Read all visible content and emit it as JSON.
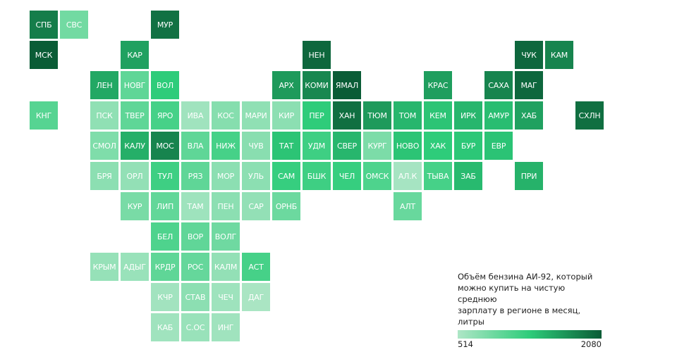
{
  "legend": {
    "title": "Объём бензина АИ-92, который\nможно купить на чистую среднюю\nзарплату в регионе в месяц, литры",
    "min_label": "514",
    "max_label": "2080",
    "min": 514,
    "max": 2080,
    "colors": [
      "#aee6c6",
      "#2ecc7a",
      "#0a5c36"
    ]
  },
  "tiles": [
    {
      "label": "СПБ",
      "row": 0,
      "col": 0,
      "value": 1850
    },
    {
      "label": "СВС",
      "row": 0,
      "col": 1,
      "value": 880
    },
    {
      "label": "МУР",
      "row": 0,
      "col": 4,
      "value": 1930
    },
    {
      "label": "МСК",
      "row": 1,
      "col": 0,
      "value": 2080
    },
    {
      "label": "КАР",
      "row": 1,
      "col": 3,
      "value": 1600
    },
    {
      "label": "НЕН",
      "row": 1,
      "col": 9,
      "value": 2000
    },
    {
      "label": "ЧУК",
      "row": 1,
      "col": 16,
      "value": 2000
    },
    {
      "label": "КАМ",
      "row": 1,
      "col": 17,
      "value": 1800
    },
    {
      "label": "ЛЕН",
      "row": 2,
      "col": 2,
      "value": 1550
    },
    {
      "label": "НОВГ",
      "row": 2,
      "col": 3,
      "value": 1000
    },
    {
      "label": "ВОЛ",
      "row": 2,
      "col": 4,
      "value": 1300
    },
    {
      "label": "АРХ",
      "row": 2,
      "col": 8,
      "value": 1650
    },
    {
      "label": "КОМИ",
      "row": 2,
      "col": 9,
      "value": 1780
    },
    {
      "label": "ЯМАЛ",
      "row": 2,
      "col": 10,
      "value": 2080
    },
    {
      "label": "КРАС",
      "row": 2,
      "col": 13,
      "value": 1620
    },
    {
      "label": "САХА",
      "row": 2,
      "col": 15,
      "value": 1800
    },
    {
      "label": "МАГ",
      "row": 2,
      "col": 16,
      "value": 2000
    },
    {
      "label": "КНГ",
      "row": 3,
      "col": 0,
      "value": 1050
    },
    {
      "label": "ПСК",
      "row": 3,
      "col": 2,
      "value": 700
    },
    {
      "label": "ТВЕР",
      "row": 3,
      "col": 3,
      "value": 1000
    },
    {
      "label": "ЯРО",
      "row": 3,
      "col": 4,
      "value": 1150
    },
    {
      "label": "ИВА",
      "row": 3,
      "col": 5,
      "value": 600
    },
    {
      "label": "КОС",
      "row": 3,
      "col": 6,
      "value": 760
    },
    {
      "label": "МАРИ",
      "row": 3,
      "col": 7,
      "value": 700
    },
    {
      "label": "КИР",
      "row": 3,
      "col": 8,
      "value": 720
    },
    {
      "label": "ПЕР",
      "row": 3,
      "col": 9,
      "value": 1300
    },
    {
      "label": "ХАН",
      "row": 3,
      "col": 10,
      "value": 1950
    },
    {
      "label": "ТЮМ",
      "row": 3,
      "col": 11,
      "value": 1650
    },
    {
      "label": "ТОМ",
      "row": 3,
      "col": 12,
      "value": 1450
    },
    {
      "label": "КЕМ",
      "row": 3,
      "col": 13,
      "value": 1350
    },
    {
      "label": "ИРК",
      "row": 3,
      "col": 14,
      "value": 1450
    },
    {
      "label": "АМУР",
      "row": 3,
      "col": 15,
      "value": 1400
    },
    {
      "label": "ХАБ",
      "row": 3,
      "col": 16,
      "value": 1600
    },
    {
      "label": "СХЛН",
      "row": 3,
      "col": 18,
      "value": 1950
    },
    {
      "label": "СМОЛ",
      "row": 4,
      "col": 2,
      "value": 800
    },
    {
      "label": "КАЛУ",
      "row": 4,
      "col": 3,
      "value": 1500
    },
    {
      "label": "МОС",
      "row": 4,
      "col": 4,
      "value": 1800
    },
    {
      "label": "ВЛА",
      "row": 4,
      "col": 5,
      "value": 1000
    },
    {
      "label": "НИЖ",
      "row": 4,
      "col": 6,
      "value": 1150
    },
    {
      "label": "ЧУВ",
      "row": 4,
      "col": 7,
      "value": 740
    },
    {
      "label": "ТАТ",
      "row": 4,
      "col": 8,
      "value": 1350
    },
    {
      "label": "УДМ",
      "row": 4,
      "col": 9,
      "value": 1200
    },
    {
      "label": "СВЕР",
      "row": 4,
      "col": 10,
      "value": 1450
    },
    {
      "label": "КУРГ",
      "row": 4,
      "col": 11,
      "value": 820
    },
    {
      "label": "НОВО",
      "row": 4,
      "col": 12,
      "value": 1350
    },
    {
      "label": "ХАК",
      "row": 4,
      "col": 13,
      "value": 1300
    },
    {
      "label": "БУР",
      "row": 4,
      "col": 14,
      "value": 1330
    },
    {
      "label": "ЕВР",
      "row": 4,
      "col": 15,
      "value": 1360
    },
    {
      "label": "БРЯ",
      "row": 5,
      "col": 2,
      "value": 720
    },
    {
      "label": "ОРЛ",
      "row": 5,
      "col": 3,
      "value": 680
    },
    {
      "label": "ТУЛ",
      "row": 5,
      "col": 4,
      "value": 1200
    },
    {
      "label": "РЯЗ",
      "row": 5,
      "col": 5,
      "value": 1000
    },
    {
      "label": "МОР",
      "row": 5,
      "col": 6,
      "value": 720
    },
    {
      "label": "УЛЬ",
      "row": 5,
      "col": 7,
      "value": 720
    },
    {
      "label": "САМ",
      "row": 5,
      "col": 8,
      "value": 1250
    },
    {
      "label": "БШК",
      "row": 5,
      "col": 9,
      "value": 1200
    },
    {
      "label": "ЧЕЛ",
      "row": 5,
      "col": 10,
      "value": 1250
    },
    {
      "label": "ОМСК",
      "row": 5,
      "col": 11,
      "value": 1100
    },
    {
      "label": "АЛ.К",
      "row": 5,
      "col": 12,
      "value": 560
    },
    {
      "label": "ТЫВА",
      "row": 5,
      "col": 13,
      "value": 1150
    },
    {
      "label": "ЗАБ",
      "row": 5,
      "col": 14,
      "value": 1420
    },
    {
      "label": "ПРИ",
      "row": 5,
      "col": 16,
      "value": 1480
    },
    {
      "label": "КУР",
      "row": 6,
      "col": 3,
      "value": 840
    },
    {
      "label": "ЛИП",
      "row": 6,
      "col": 4,
      "value": 980
    },
    {
      "label": "ТАМ",
      "row": 6,
      "col": 5,
      "value": 610
    },
    {
      "label": "ПЕН",
      "row": 6,
      "col": 6,
      "value": 720
    },
    {
      "label": "САР",
      "row": 6,
      "col": 7,
      "value": 680
    },
    {
      "label": "ОРНБ",
      "row": 6,
      "col": 8,
      "value": 920
    },
    {
      "label": "АЛТ",
      "row": 6,
      "col": 12,
      "value": 940
    },
    {
      "label": "БЕЛ",
      "row": 7,
      "col": 4,
      "value": 1100
    },
    {
      "label": "ВОР",
      "row": 7,
      "col": 5,
      "value": 990
    },
    {
      "label": "ВОЛГ",
      "row": 7,
      "col": 6,
      "value": 900
    },
    {
      "label": "КРЫМ",
      "row": 8,
      "col": 2,
      "value": 660
    },
    {
      "label": "АДЫГ",
      "row": 8,
      "col": 3,
      "value": 640
    },
    {
      "label": "КРДР",
      "row": 8,
      "col": 4,
      "value": 1000
    },
    {
      "label": "РОС",
      "row": 8,
      "col": 5,
      "value": 960
    },
    {
      "label": "КАЛМ",
      "row": 8,
      "col": 6,
      "value": 680
    },
    {
      "label": "АСТ",
      "row": 8,
      "col": 7,
      "value": 1150
    },
    {
      "label": "КЧР",
      "row": 9,
      "col": 4,
      "value": 590
    },
    {
      "label": "СТАВ",
      "row": 9,
      "col": 5,
      "value": 720
    },
    {
      "label": "ЧЕЧ",
      "row": 9,
      "col": 6,
      "value": 610
    },
    {
      "label": "ДАГ",
      "row": 9,
      "col": 7,
      "value": 540
    },
    {
      "label": "КАБ",
      "row": 10,
      "col": 4,
      "value": 600
    },
    {
      "label": "С.ОС",
      "row": 10,
      "col": 5,
      "value": 640
    },
    {
      "label": "ИНГ",
      "row": 10,
      "col": 6,
      "value": 600
    }
  ]
}
